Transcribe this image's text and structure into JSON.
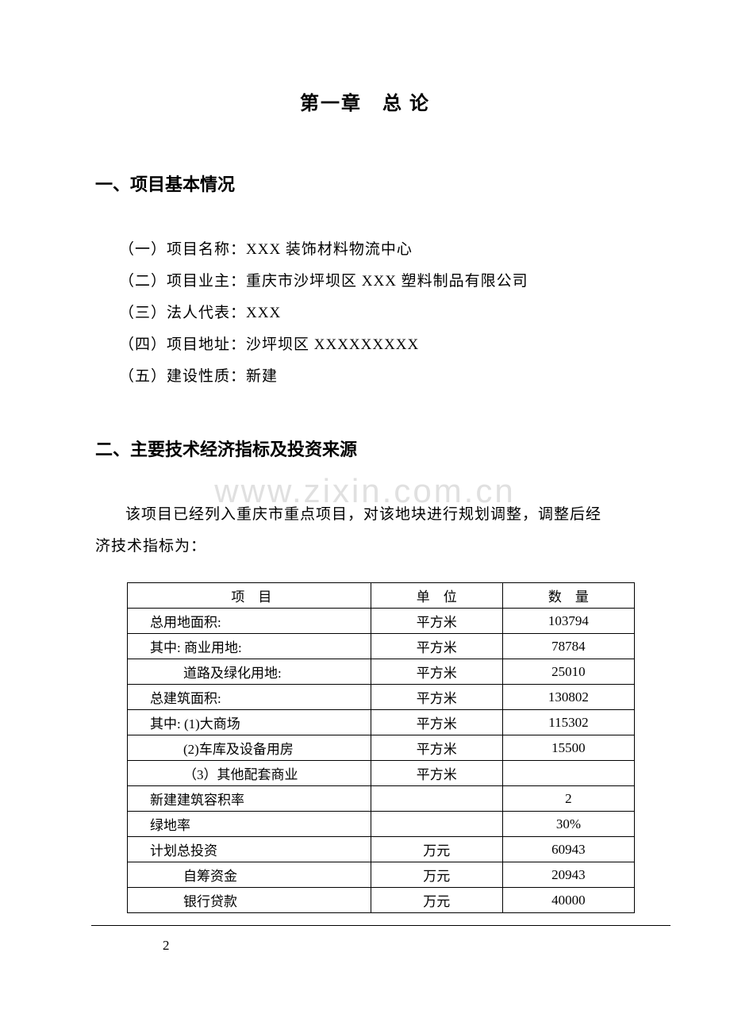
{
  "chapter_title": "第一章　总 论",
  "section1": {
    "heading": "一、项目基本情况",
    "items": [
      "（一）项目名称：XXX 装饰材料物流中心",
      "（二）项目业主：重庆市沙坪坝区 XXX 塑料制品有限公司",
      "（三）法人代表：XXX",
      "（四）项目地址：沙坪坝区 XXXXXXXXX",
      "（五）建设性质：新建"
    ]
  },
  "section2": {
    "heading": "二、主要技术经济指标及投资来源",
    "paragraph_line1": "该项目已经列入重庆市重点项目，对该地块进行规划调整，调整后经",
    "paragraph_line2": "济技术指标为："
  },
  "watermark": "www.zixin.com.cn",
  "table": {
    "headers": {
      "item": "项　目",
      "unit": "单　位",
      "qty": "数　量"
    },
    "rows": [
      {
        "item": "总用地面积:",
        "unit": "平方米",
        "qty": "103794",
        "indent": 1
      },
      {
        "item": "其中: 商业用地:",
        "unit": "平方米",
        "qty": "78784",
        "indent": 1
      },
      {
        "item": "道路及绿化用地:",
        "unit": "平方米",
        "qty": "25010",
        "indent": 2
      },
      {
        "item": "总建筑面积:",
        "unit": "平方米",
        "qty": "130802",
        "indent": 1
      },
      {
        "item": "其中: (1)大商场",
        "unit": "平方米",
        "qty": "115302",
        "indent": 1
      },
      {
        "item": "(2)车库及设备用房",
        "unit": "平方米",
        "qty": "15500",
        "indent": 2
      },
      {
        "item": "（3）其他配套商业",
        "unit": "平方米",
        "qty": "",
        "indent": 2
      },
      {
        "item": "新建建筑容积率",
        "unit": "",
        "qty": "2",
        "indent": 1
      },
      {
        "item": "绿地率",
        "unit": "",
        "qty": "30%",
        "indent": 1
      },
      {
        "item": "计划总投资",
        "unit": "万元",
        "qty": "60943",
        "indent": 1
      },
      {
        "item": "自筹资金",
        "unit": "万元",
        "qty": "20943",
        "indent": 3
      },
      {
        "item": "银行贷款",
        "unit": "万元",
        "qty": "40000",
        "indent": 3
      }
    ]
  },
  "page_number": "2",
  "colors": {
    "text": "#000000",
    "background": "#ffffff",
    "watermark": "#e0e0e0",
    "border": "#000000"
  }
}
